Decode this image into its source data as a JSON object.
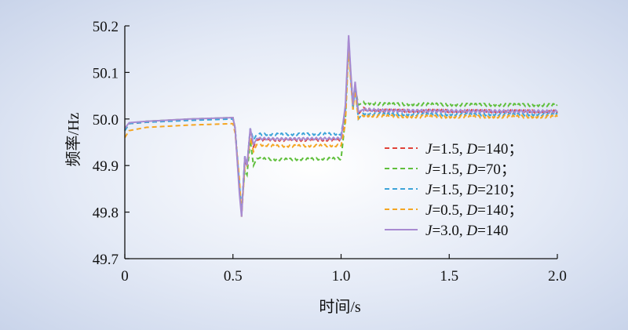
{
  "chart_data": {
    "type": "line",
    "xlabel": "时间/s",
    "ylabel": "频率/Hz",
    "xlim": [
      0,
      2.0
    ],
    "ylim": [
      49.7,
      50.2
    ],
    "x_ticks": [
      "0",
      "0.5",
      "1.0",
      "1.5",
      "2.0"
    ],
    "y_ticks": [
      "49.7",
      "49.8",
      "49.9",
      "50.0",
      "50.1",
      "50.2"
    ],
    "legend_position": "right",
    "series": [
      {
        "name": "J=1.5, D=140；",
        "name_parts": [
          "J",
          "=1.5, ",
          "D",
          "=140；"
        ],
        "color": "#e0433a",
        "dash": true,
        "x": [
          0,
          0.02,
          0.1,
          0.3,
          0.5,
          0.51,
          0.53,
          0.54,
          0.555,
          0.565,
          0.58,
          0.595,
          0.61,
          0.7,
          1.0,
          1.02,
          1.035,
          1.045,
          1.055,
          1.065,
          1.08,
          1.1,
          1.2,
          1.5,
          2.0
        ],
        "y": [
          49.975,
          49.99,
          49.993,
          49.998,
          50.002,
          49.98,
          49.85,
          49.8,
          49.91,
          49.9,
          49.975,
          49.94,
          49.955,
          49.955,
          49.955,
          50.02,
          50.17,
          50.09,
          50.03,
          50.07,
          50.01,
          50.022,
          50.018,
          50.017,
          50.016
        ]
      },
      {
        "name": "J=1.5, D=70；",
        "name_parts": [
          "J",
          "=1.5, ",
          "D",
          "=70；"
        ],
        "color": "#5fbf3c",
        "dash": true,
        "x": [
          0,
          0.02,
          0.1,
          0.3,
          0.5,
          0.51,
          0.53,
          0.54,
          0.555,
          0.565,
          0.58,
          0.595,
          0.61,
          0.7,
          1.0,
          1.02,
          1.035,
          1.045,
          1.055,
          1.065,
          1.08,
          1.1,
          1.2,
          1.5,
          2.0
        ],
        "y": [
          49.975,
          49.99,
          49.995,
          50.0,
          50.003,
          49.98,
          49.85,
          49.81,
          49.89,
          49.88,
          49.955,
          49.9,
          49.915,
          49.913,
          49.915,
          50.0,
          50.165,
          50.09,
          50.04,
          50.07,
          50.03,
          50.035,
          50.032,
          50.031,
          50.03
        ]
      },
      {
        "name": "J=1.5, D=210；",
        "name_parts": [
          "J",
          "=1.5, ",
          "D",
          "=210；"
        ],
        "color": "#3ea4d9",
        "dash": true,
        "x": [
          0,
          0.02,
          0.1,
          0.3,
          0.5,
          0.51,
          0.53,
          0.54,
          0.555,
          0.565,
          0.58,
          0.595,
          0.61,
          0.7,
          1.0,
          1.02,
          1.035,
          1.045,
          1.055,
          1.065,
          1.08,
          1.1,
          1.2,
          1.5,
          2.0
        ],
        "y": [
          49.975,
          49.99,
          49.993,
          49.997,
          50.0,
          49.98,
          49.86,
          49.8,
          49.92,
          49.9,
          49.98,
          49.955,
          49.967,
          49.967,
          49.968,
          50.02,
          50.175,
          50.09,
          50.02,
          50.07,
          50.0,
          50.012,
          50.01,
          50.01,
          50.01
        ]
      },
      {
        "name": "J=0.5, D=140；",
        "name_parts": [
          "J",
          "=0.5, ",
          "D",
          "=140；"
        ],
        "color": "#f5a623",
        "dash": true,
        "x": [
          0,
          0.02,
          0.1,
          0.3,
          0.5,
          0.51,
          0.53,
          0.54,
          0.555,
          0.565,
          0.58,
          0.595,
          0.61,
          0.7,
          1.0,
          1.02,
          1.035,
          1.045,
          1.055,
          1.065,
          1.08,
          1.1,
          1.2,
          1.5,
          2.0
        ],
        "y": [
          49.96,
          49.975,
          49.982,
          49.987,
          49.99,
          49.97,
          49.87,
          49.79,
          49.9,
          49.9,
          49.96,
          49.93,
          49.945,
          49.942,
          49.943,
          49.99,
          50.16,
          50.08,
          50.02,
          50.06,
          50.0,
          50.008,
          50.006,
          50.005,
          50.005
        ]
      },
      {
        "name": "J=3.0, D=140",
        "name_parts": [
          "J",
          "=3.0, ",
          "D",
          "=140"
        ],
        "color": "#a88bd1",
        "dash": false,
        "x": [
          0,
          0.02,
          0.1,
          0.3,
          0.5,
          0.51,
          0.53,
          0.54,
          0.555,
          0.565,
          0.58,
          0.595,
          0.61,
          0.7,
          1.0,
          1.02,
          1.035,
          1.045,
          1.055,
          1.065,
          1.08,
          1.1,
          1.2,
          1.5,
          2.0
        ],
        "y": [
          49.98,
          49.992,
          49.995,
          50.0,
          50.003,
          49.98,
          49.84,
          49.79,
          49.92,
          49.9,
          49.98,
          49.945,
          49.958,
          49.957,
          49.958,
          50.03,
          50.18,
          50.1,
          50.03,
          50.08,
          50.015,
          50.02,
          50.018,
          50.017,
          50.016
        ]
      }
    ]
  }
}
